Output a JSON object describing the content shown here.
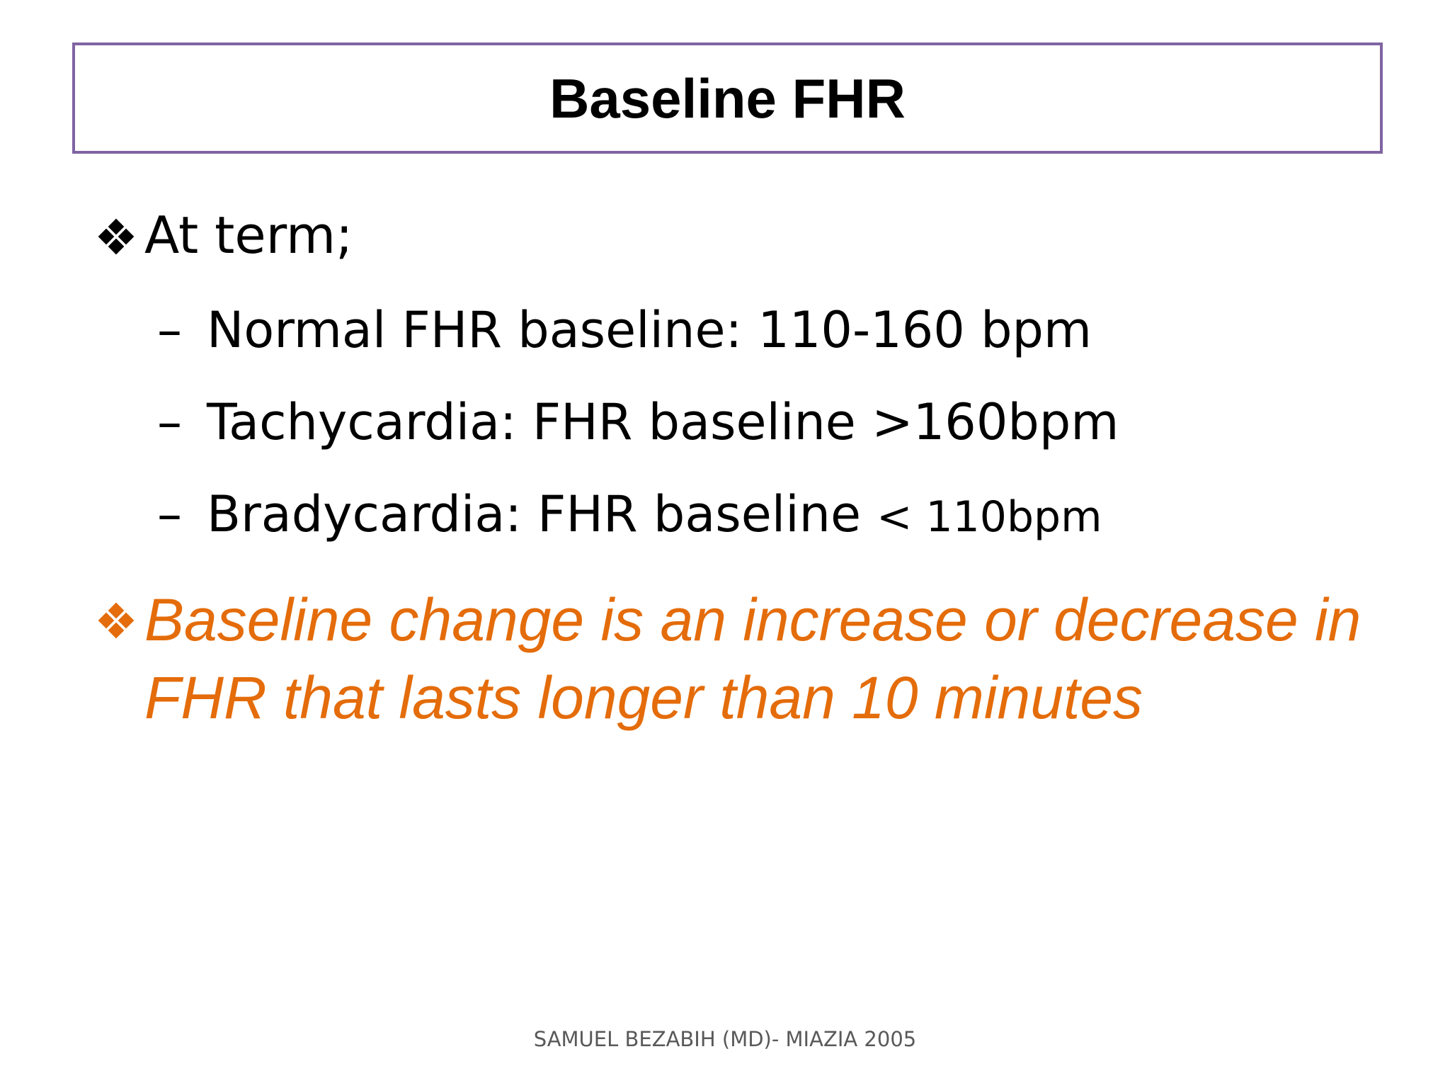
{
  "slide": {
    "title": "Baseline FHR",
    "bullets": [
      {
        "text": "At term;",
        "sub_items": [
          {
            "prefix": "–",
            "text": "Normal FHR baseline: 110-160 bpm"
          },
          {
            "prefix": "–",
            "text": "Tachycardia: FHR baseline >160bpm"
          },
          {
            "prefix": "–",
            "text": "Bradycardia: FHR baseline",
            "small_suffix": "< 110bpm"
          }
        ]
      },
      {
        "text": "Baseline change is an increase or decrease in FHR that lasts longer than 10 minutes"
      }
    ],
    "footer": "SAMUEL BEZABIH (MD)- MIAZIA 2005"
  },
  "colors": {
    "title_border": "#8064a2",
    "highlight": "#e46c0a",
    "text": "#000000",
    "footer": "#595959"
  },
  "icons": {
    "bullet": "four-diamond-bullet-icon"
  }
}
